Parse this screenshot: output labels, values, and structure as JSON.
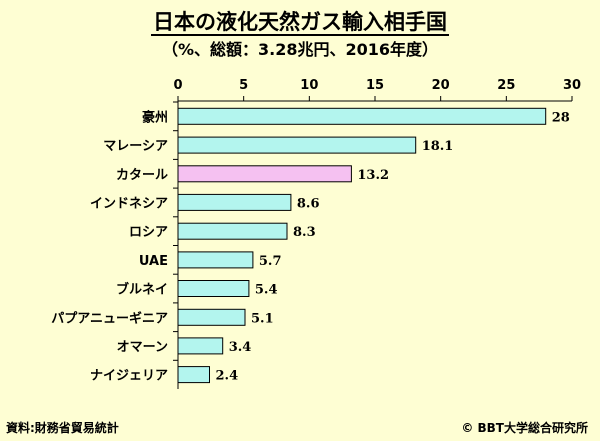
{
  "header": {
    "title": "日本の液化天然ガス輸入相手国",
    "subtitle": "（%、総額：3.28兆円、2016年度）"
  },
  "footer": {
    "source": "資料:財務省貿易統計",
    "copyright": "© BBT大学総合研究所"
  },
  "colors": {
    "bar": "#b3f5ee",
    "highlight": "#f5c1f1",
    "axis": "#000000"
  },
  "chart_data": {
    "type": "bar",
    "orientation": "horizontal",
    "title": "日本の液化天然ガス輸入相手国",
    "subtitle": "（%、総額：3.28兆円、2016年度）",
    "categories": [
      "豪州",
      "マレーシア",
      "カタール",
      "インドネシア",
      "ロシア",
      "UAE",
      "ブルネイ",
      "パプアニューギニア",
      "オマーン",
      "ナイジェリア"
    ],
    "values": [
      28,
      18.1,
      13.2,
      8.6,
      8.3,
      5.7,
      5.4,
      5.1,
      3.4,
      2.4
    ],
    "value_labels": [
      "28",
      "18.1",
      "13.2",
      "8.6",
      "8.3",
      "5.7",
      "5.4",
      "5.1",
      "3.4",
      "2.4"
    ],
    "highlighted_category": "カタール",
    "xlim": [
      0,
      30
    ],
    "xticks": [
      0,
      5,
      10,
      15,
      20,
      25,
      30
    ],
    "xtick_labels": [
      "0",
      "5",
      "10",
      "15",
      "20",
      "25",
      "30"
    ],
    "xaxis_position": "top",
    "grid": false,
    "legend": "none"
  }
}
